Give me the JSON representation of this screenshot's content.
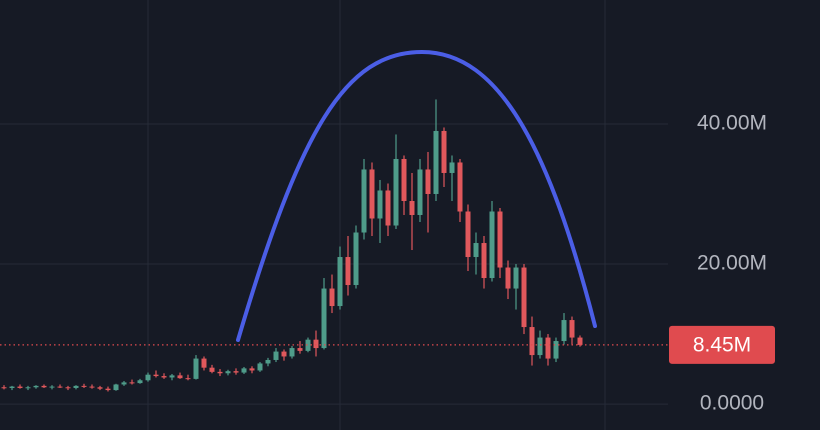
{
  "chart_data": {
    "type": "candlestick",
    "open": [
      2.4,
      2.3,
      2.5,
      2.3,
      2.4,
      2.6,
      2.4,
      2.5,
      2.4,
      2.3,
      2.6,
      2.5,
      2.4,
      2.2,
      2.0,
      2.8,
      3.1,
      3.0,
      3.4,
      4.2,
      4.0,
      3.8,
      4.1,
      3.7,
      3.6,
      6.5,
      5.2,
      4.6,
      4.4,
      4.7,
      4.5,
      5.1,
      4.8,
      5.8,
      6.3,
      7.5,
      6.8,
      8.0,
      7.6,
      9.2,
      8.0,
      16.5,
      14.0,
      21.0,
      17.0,
      24.5,
      33.5,
      26.5,
      30.5,
      25.5,
      35.0,
      29.0,
      27.0,
      33.5,
      30.0,
      39.0,
      33.0,
      34.5,
      27.5,
      21.0,
      23.0,
      18.0,
      27.5,
      19.5,
      16.5,
      19.5,
      11.0,
      7.0,
      9.5,
      6.5,
      9.0,
      12.0,
      9.5
    ],
    "high": [
      2.7,
      2.6,
      2.8,
      2.6,
      2.7,
      2.8,
      2.7,
      2.8,
      2.6,
      2.7,
      2.9,
      2.8,
      2.6,
      2.5,
      2.9,
      3.3,
      3.5,
      3.6,
      4.5,
      4.8,
      4.4,
      4.3,
      4.5,
      4.2,
      7.0,
      6.8,
      5.6,
      5.0,
      4.9,
      5.1,
      5.3,
      5.4,
      6.0,
      6.6,
      8.0,
      7.8,
      8.3,
      9.0,
      9.5,
      10.5,
      18.0,
      18.5,
      22.5,
      24.0,
      25.5,
      35.0,
      34.5,
      32.0,
      31.5,
      38.5,
      35.5,
      33.0,
      35.0,
      36.0,
      43.5,
      39.5,
      35.5,
      35.0,
      28.5,
      24.5,
      24.0,
      29.0,
      28.0,
      20.5,
      20.0,
      20.0,
      12.5,
      10.5,
      10.0,
      9.5,
      13.0,
      12.5,
      9.8
    ],
    "low": [
      2.1,
      2.0,
      2.2,
      2.0,
      2.2,
      2.3,
      2.1,
      2.3,
      2.0,
      2.1,
      2.3,
      2.2,
      2.0,
      1.8,
      1.9,
      2.6,
      2.8,
      2.9,
      3.2,
      3.8,
      3.6,
      3.4,
      3.6,
      3.4,
      3.5,
      4.8,
      4.4,
      4.0,
      4.1,
      4.2,
      4.3,
      4.4,
      4.6,
      5.4,
      6.0,
      6.2,
      6.5,
      7.2,
      7.4,
      6.8,
      7.8,
      13.0,
      13.5,
      15.5,
      16.5,
      23.5,
      24.0,
      23.0,
      24.0,
      25.0,
      27.0,
      22.0,
      26.0,
      24.5,
      29.0,
      31.0,
      29.0,
      26.0,
      19.0,
      18.5,
      16.5,
      17.5,
      18.0,
      15.0,
      13.5,
      10.0,
      5.5,
      6.5,
      5.5,
      6.0,
      8.5,
      8.5,
      8.2
    ],
    "close": [
      2.3,
      2.5,
      2.3,
      2.4,
      2.6,
      2.4,
      2.5,
      2.4,
      2.3,
      2.6,
      2.5,
      2.4,
      2.2,
      2.0,
      2.8,
      3.1,
      3.0,
      3.4,
      4.2,
      4.0,
      3.8,
      4.1,
      3.7,
      3.6,
      6.5,
      5.2,
      4.6,
      4.4,
      4.7,
      4.5,
      5.1,
      4.8,
      5.8,
      6.3,
      7.5,
      6.8,
      8.0,
      7.6,
      9.2,
      8.0,
      16.5,
      14.0,
      21.0,
      17.0,
      24.5,
      33.5,
      26.5,
      30.5,
      25.5,
      35.0,
      29.0,
      27.0,
      33.5,
      30.0,
      39.0,
      33.0,
      34.5,
      27.5,
      21.0,
      23.0,
      18.0,
      27.5,
      19.5,
      16.5,
      19.5,
      11.0,
      7.0,
      9.5,
      6.5,
      9.0,
      12.0,
      9.5,
      8.45
    ],
    "up_color": "#4f9c8a",
    "down_color": "#e0585c",
    "ylim": [
      -3.7,
      57.7
    ],
    "yticks": [
      {
        "value": 0,
        "label": "0.0000"
      },
      {
        "value": 20,
        "label": "20.00M"
      },
      {
        "value": 40,
        "label": "40.00M"
      }
    ],
    "grid": true,
    "last_price": {
      "value": 8.45,
      "label": "8.45M"
    },
    "last_price_color": "#e04b4f"
  }
}
